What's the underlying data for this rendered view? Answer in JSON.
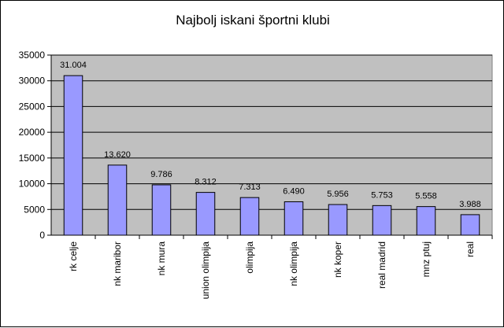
{
  "chart_data": {
    "type": "bar",
    "title": "Najbolj iskani športni klubi",
    "categories": [
      "rk celje",
      "nk maribor",
      "nk mura",
      "union olimpija",
      "olimpija",
      "nk olimpija",
      "nk koper",
      "real madrid",
      "mnz ptuj",
      "real"
    ],
    "values": [
      31004,
      13620,
      9786,
      8312,
      7313,
      6490,
      5956,
      5753,
      5558,
      3988
    ],
    "data_labels": [
      "31.004",
      "13.620",
      "9.786",
      "8.312",
      "7.313",
      "6.490",
      "5.956",
      "5.753",
      "5.558",
      "3.988"
    ],
    "ylim": [
      0,
      35000
    ],
    "yticks": [
      0,
      5000,
      10000,
      15000,
      20000,
      25000,
      30000,
      35000
    ],
    "ytick_labels": [
      "0",
      "5000",
      "10000",
      "15000",
      "20000",
      "25000",
      "30000",
      "35000"
    ],
    "grid": true,
    "legend": "none",
    "colors": {
      "plot_background": "#c0c0c0",
      "bar_fill": "#9999ff",
      "bar_stroke": "#000000",
      "gridline": "#000000"
    }
  }
}
